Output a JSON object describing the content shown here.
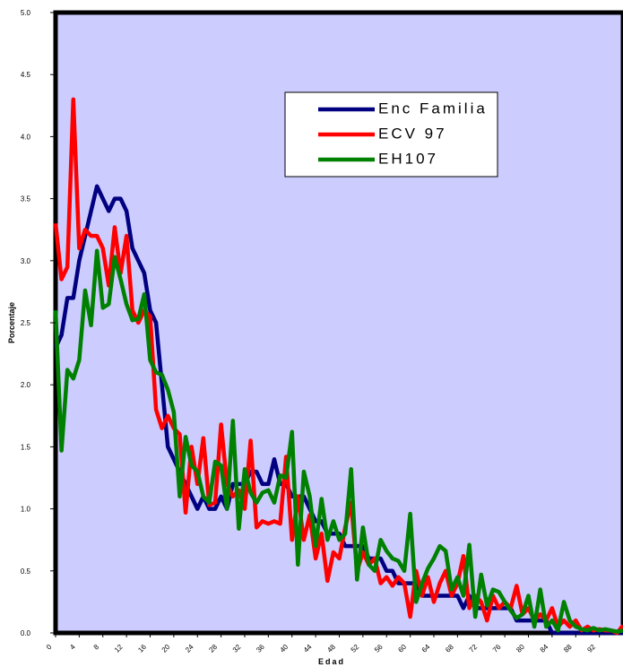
{
  "chart_data": {
    "type": "line",
    "xlabel": "Edad",
    "ylabel": "Porcentaje",
    "x": [
      0,
      1,
      2,
      3,
      4,
      5,
      6,
      7,
      8,
      9,
      10,
      11,
      12,
      13,
      14,
      15,
      16,
      17,
      18,
      19,
      20,
      21,
      22,
      23,
      24,
      25,
      26,
      27,
      28,
      29,
      30,
      31,
      32,
      33,
      34,
      35,
      36,
      37,
      38,
      39,
      40,
      41,
      42,
      43,
      44,
      45,
      46,
      47,
      48,
      49,
      50,
      51,
      52,
      53,
      54,
      55,
      56,
      57,
      58,
      59,
      60,
      61,
      62,
      63,
      64,
      65,
      66,
      67,
      68,
      69,
      70,
      71,
      72,
      73,
      74,
      75,
      76,
      77,
      78,
      79,
      80,
      81,
      82,
      83,
      84,
      85,
      86,
      87,
      88,
      89,
      90,
      91,
      92,
      93,
      94,
      95,
      96
    ],
    "series": [
      {
        "name": "Enc Familia",
        "color": "#000080",
        "values": [
          2.3,
          2.4,
          2.7,
          2.7,
          3.0,
          3.2,
          3.4,
          3.6,
          3.5,
          3.4,
          3.5,
          3.5,
          3.4,
          3.1,
          3.0,
          2.9,
          2.6,
          2.5,
          2.0,
          1.5,
          1.4,
          1.3,
          1.2,
          1.1,
          1.0,
          1.1,
          1.0,
          1.0,
          1.1,
          1.0,
          1.2,
          1.2,
          1.2,
          1.3,
          1.3,
          1.2,
          1.2,
          1.4,
          1.2,
          1.2,
          1.1,
          1.1,
          1.1,
          1.0,
          0.9,
          0.9,
          0.8,
          0.8,
          0.8,
          0.7,
          0.7,
          0.7,
          0.7,
          0.6,
          0.6,
          0.6,
          0.5,
          0.5,
          0.4,
          0.4,
          0.4,
          0.4,
          0.3,
          0.3,
          0.3,
          0.3,
          0.3,
          0.3,
          0.3,
          0.2,
          0.3,
          0.2,
          0.2,
          0.2,
          0.2,
          0.2,
          0.2,
          0.2,
          0.1,
          0.1,
          0.1,
          0.1,
          0.1,
          0.1,
          0.0,
          0.0,
          0.0,
          0.0,
          0.0,
          0.0,
          0.0,
          0.0,
          0.0,
          0.0,
          0.0,
          0.0,
          0.0
        ]
      },
      {
        "name": "ECV 97",
        "color": "#ff0000",
        "values": [
          3.3,
          2.85,
          2.95,
          4.3,
          3.1,
          3.25,
          3.2,
          3.2,
          3.1,
          2.8,
          3.27,
          2.9,
          3.2,
          2.6,
          2.5,
          2.6,
          2.55,
          1.8,
          1.65,
          1.75,
          1.65,
          1.6,
          0.97,
          1.5,
          1.2,
          1.57,
          1.03,
          1.05,
          1.68,
          1.2,
          1.1,
          1.15,
          1.0,
          1.55,
          0.85,
          0.9,
          0.88,
          0.9,
          0.88,
          1.42,
          0.75,
          1.1,
          0.75,
          0.95,
          0.6,
          0.8,
          0.42,
          0.65,
          0.6,
          0.85,
          1.05,
          0.5,
          0.65,
          0.55,
          0.6,
          0.4,
          0.45,
          0.38,
          0.45,
          0.4,
          0.13,
          0.5,
          0.3,
          0.45,
          0.25,
          0.4,
          0.5,
          0.3,
          0.4,
          0.62,
          0.2,
          0.3,
          0.25,
          0.1,
          0.3,
          0.2,
          0.25,
          0.2,
          0.38,
          0.15,
          0.2,
          0.1,
          0.15,
          0.1,
          0.2,
          0.05,
          0.1,
          0.05,
          0.1,
          0.02,
          0.05,
          0.02,
          0.03,
          0.02,
          0.02,
          0.0,
          0.06
        ]
      },
      {
        "name": "EH107",
        "color": "#008000",
        "values": [
          2.6,
          1.47,
          2.12,
          2.05,
          2.2,
          2.76,
          2.48,
          3.08,
          2.62,
          2.65,
          3.03,
          2.85,
          2.65,
          2.52,
          2.53,
          2.73,
          2.2,
          2.1,
          2.08,
          1.96,
          1.78,
          1.1,
          1.58,
          1.35,
          1.3,
          1.1,
          1.05,
          1.38,
          1.35,
          1.0,
          1.71,
          0.84,
          1.32,
          1.13,
          1.05,
          1.13,
          1.15,
          1.05,
          1.27,
          1.25,
          1.62,
          0.55,
          1.3,
          1.1,
          0.7,
          1.08,
          0.75,
          0.9,
          0.75,
          0.8,
          1.32,
          0.43,
          0.85,
          0.55,
          0.5,
          0.75,
          0.66,
          0.6,
          0.58,
          0.5,
          0.96,
          0.25,
          0.4,
          0.52,
          0.6,
          0.7,
          0.66,
          0.35,
          0.45,
          0.3,
          0.71,
          0.13,
          0.47,
          0.22,
          0.35,
          0.33,
          0.25,
          0.18,
          0.12,
          0.15,
          0.3,
          0.05,
          0.35,
          0.05,
          0.1,
          0.02,
          0.25,
          0.1,
          0.05,
          0.03,
          0.02,
          0.04,
          0.02,
          0.03,
          0.02,
          0.01,
          0.02
        ]
      }
    ],
    "xlim": [
      0,
      96
    ],
    "xticks": [
      0,
      4,
      8,
      12,
      16,
      20,
      24,
      28,
      32,
      36,
      40,
      44,
      48,
      52,
      56,
      60,
      64,
      68,
      72,
      76,
      80,
      84,
      88,
      92
    ],
    "ylim": [
      0,
      5
    ],
    "yticks": [
      {
        "value": 0,
        "label": "0.0"
      },
      0.5,
      {
        "value": 1,
        "label": "1.0"
      },
      1.5,
      {
        "value": 2,
        "label": "2.0"
      },
      2.5,
      {
        "value": 3,
        "label": "3.0"
      },
      3.5,
      {
        "value": 4,
        "label": "4.0"
      },
      4.5,
      {
        "value": 5,
        "label": "5.0"
      }
    ],
    "grid": false
  }
}
